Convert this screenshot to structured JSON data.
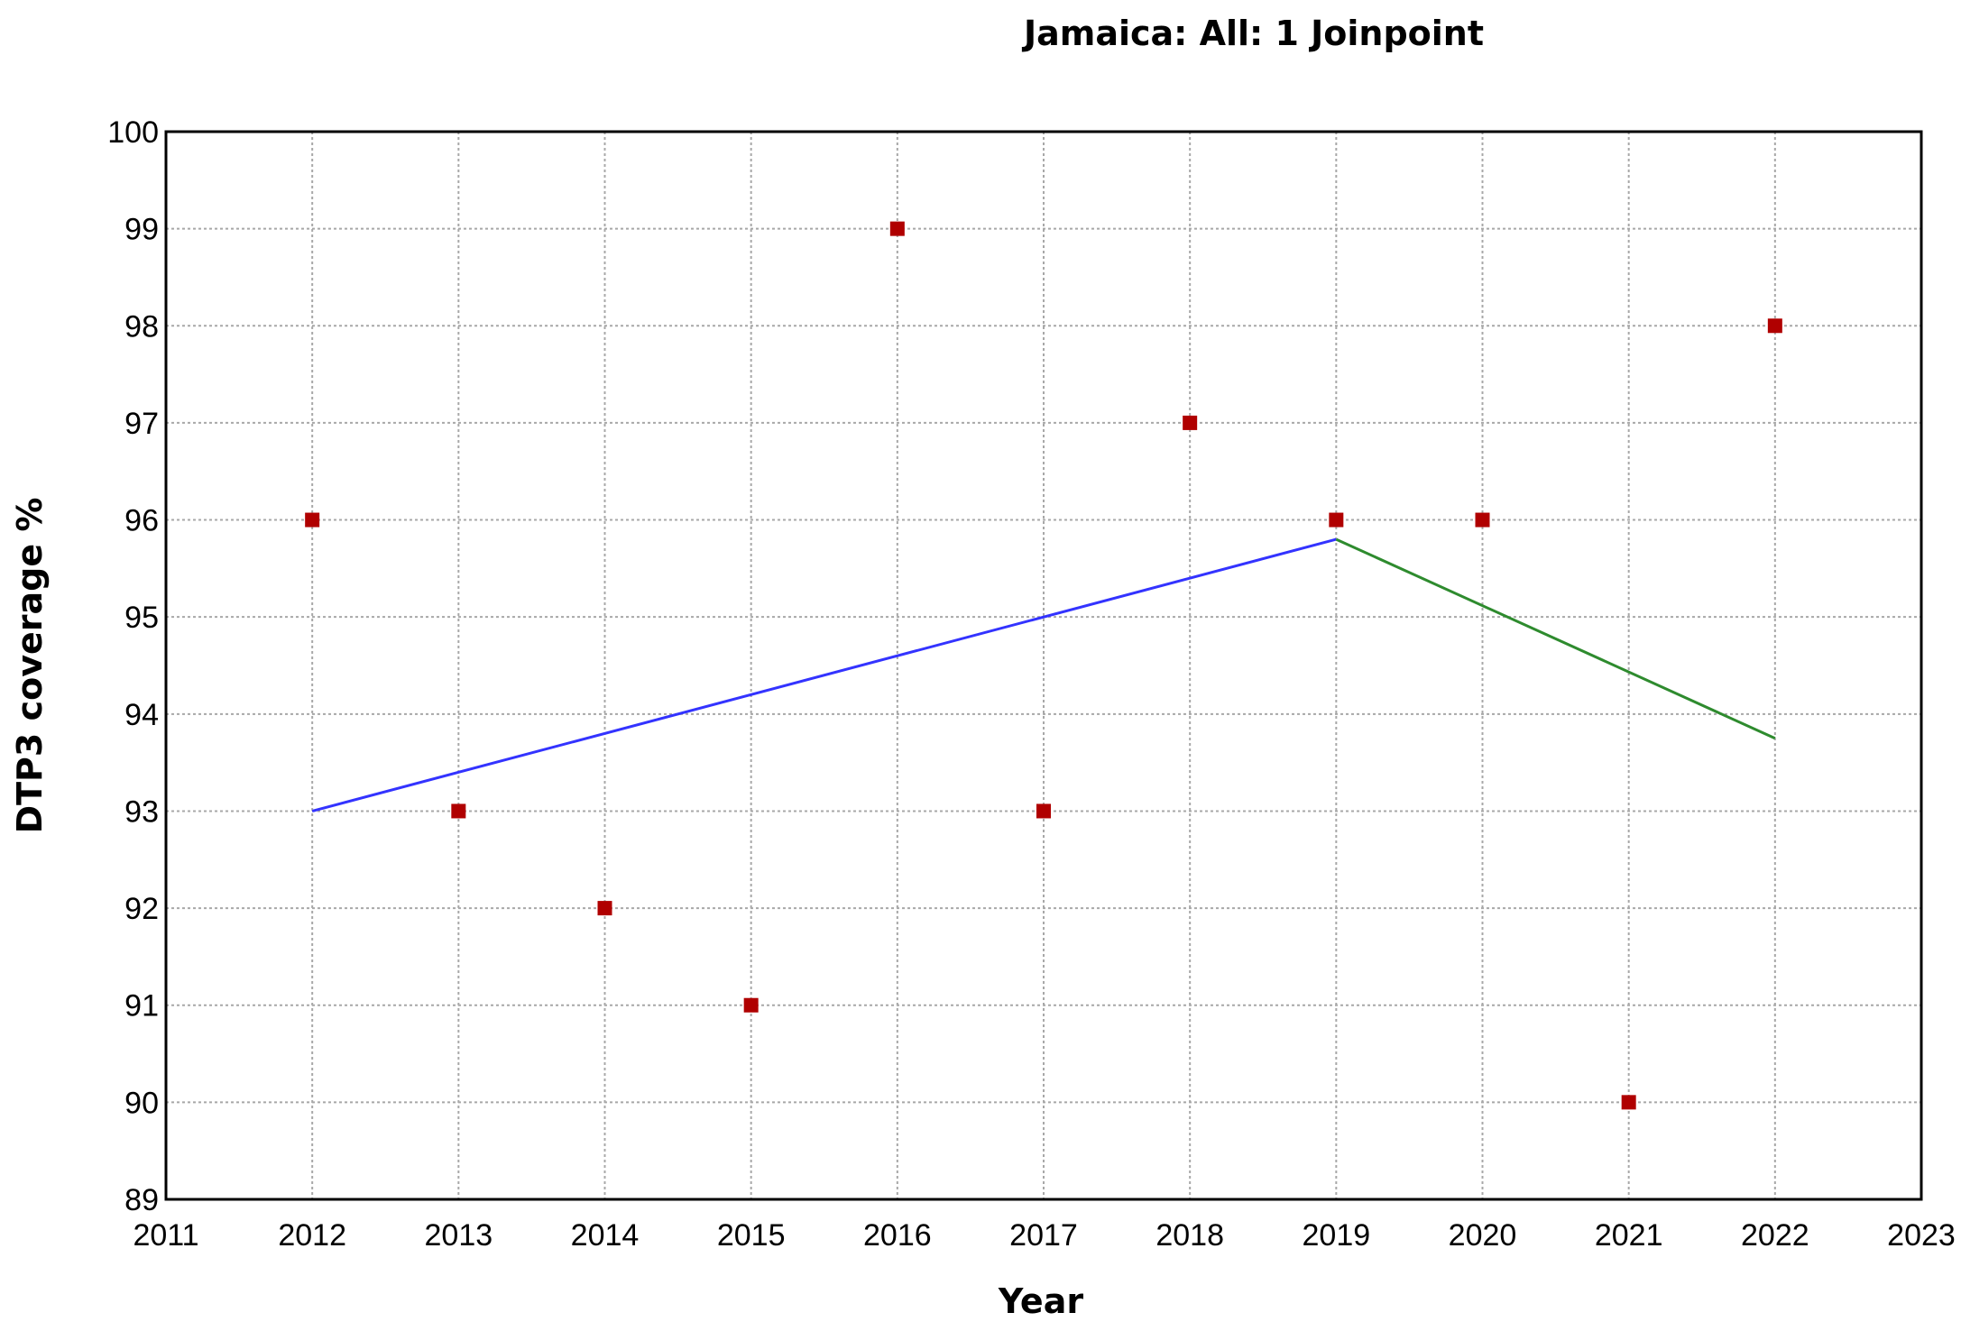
{
  "chart_data": {
    "type": "scatter",
    "title": "Jamaica: All: 1 Joinpoint",
    "xlabel": "Year",
    "ylabel": "DTP3 coverage %",
    "xlim": [
      2011,
      2023
    ],
    "ylim": [
      89,
      100
    ],
    "x_ticks": [
      2011,
      2012,
      2013,
      2014,
      2015,
      2016,
      2017,
      2018,
      2019,
      2020,
      2021,
      2022,
      2023
    ],
    "y_ticks": [
      89,
      90,
      91,
      92,
      93,
      94,
      95,
      96,
      97,
      98,
      99,
      100
    ],
    "grid": true,
    "observed": {
      "marker": "square",
      "color": "#b00000",
      "x": [
        2012,
        2013,
        2014,
        2015,
        2016,
        2017,
        2018,
        2019,
        2020,
        2021,
        2022
      ],
      "y": [
        96,
        93,
        92,
        91,
        99,
        93,
        97,
        96,
        96,
        90,
        98
      ]
    },
    "segments": [
      {
        "color": "#3333ff",
        "x": [
          2012,
          2019
        ],
        "y": [
          93.0,
          95.8
        ]
      },
      {
        "color": "#2e8b2e",
        "x": [
          2019,
          2022
        ],
        "y": [
          95.8,
          93.75
        ]
      }
    ]
  }
}
